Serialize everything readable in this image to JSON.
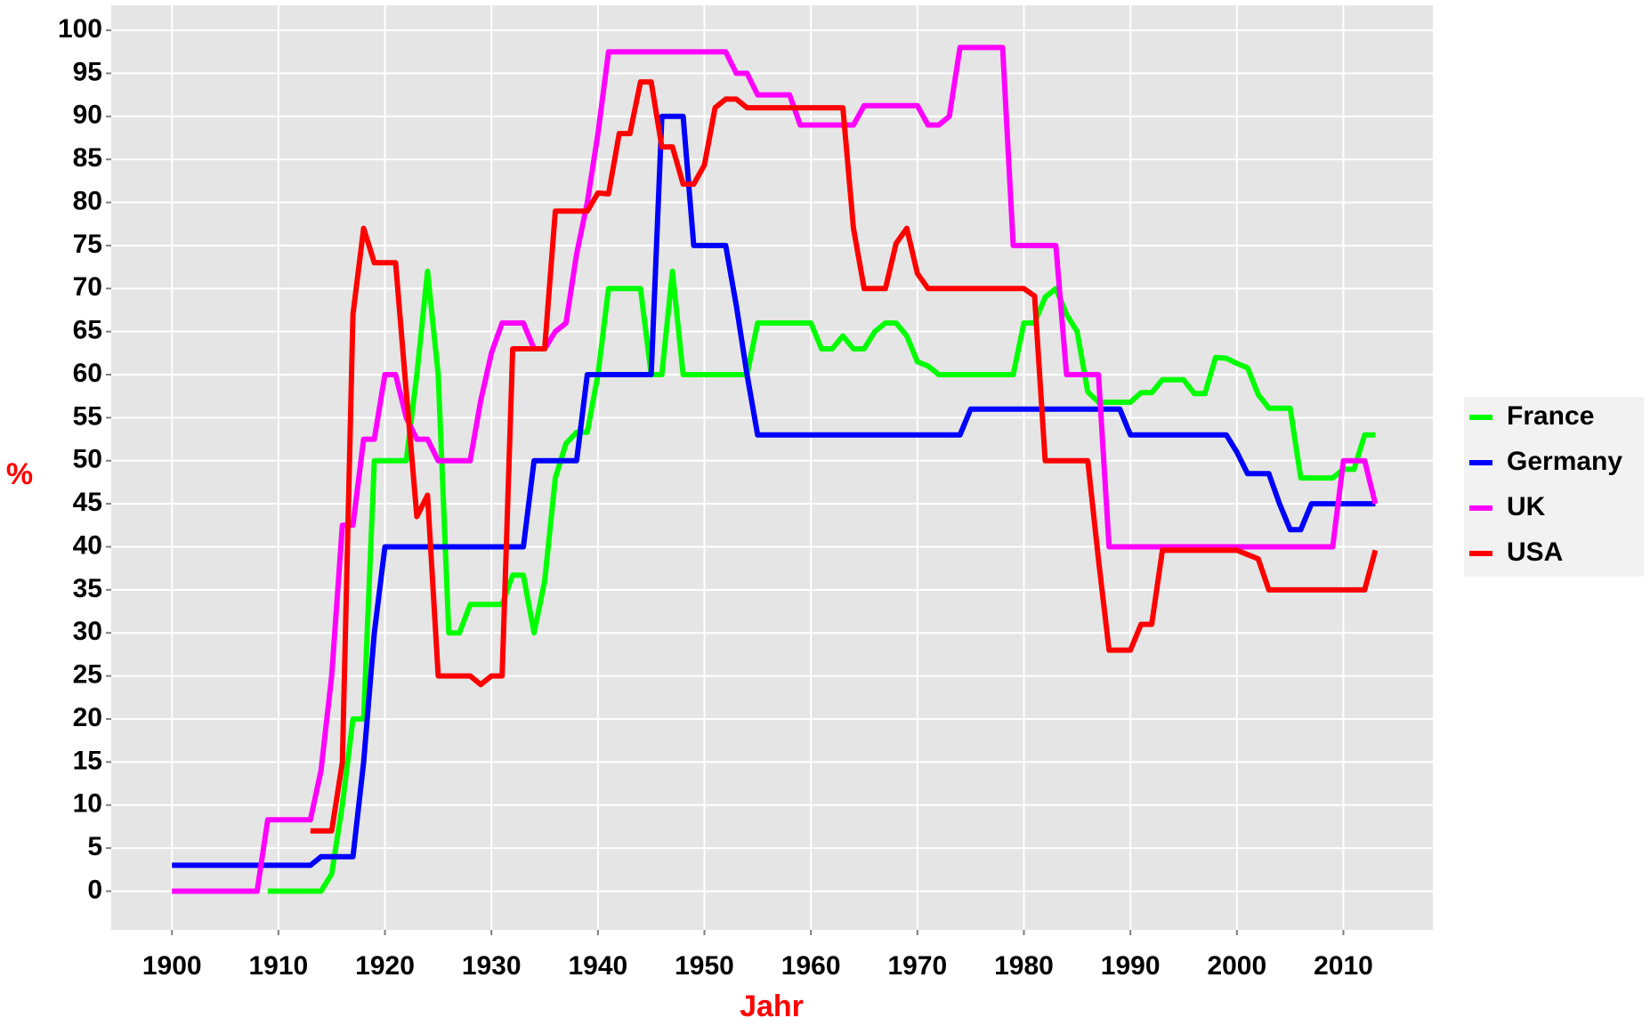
{
  "chart_data": {
    "type": "line",
    "x_label": "Jahr",
    "y_label": "%",
    "x": [
      1900,
      1901,
      1902,
      1903,
      1904,
      1905,
      1906,
      1907,
      1908,
      1909,
      1910,
      1911,
      1912,
      1913,
      1914,
      1915,
      1916,
      1917,
      1918,
      1919,
      1920,
      1921,
      1922,
      1923,
      1924,
      1925,
      1926,
      1927,
      1928,
      1929,
      1930,
      1931,
      1932,
      1933,
      1934,
      1935,
      1936,
      1937,
      1938,
      1939,
      1940,
      1941,
      1942,
      1943,
      1944,
      1945,
      1946,
      1947,
      1948,
      1949,
      1950,
      1951,
      1952,
      1953,
      1954,
      1955,
      1956,
      1957,
      1958,
      1959,
      1960,
      1961,
      1962,
      1963,
      1964,
      1965,
      1966,
      1967,
      1968,
      1969,
      1970,
      1971,
      1972,
      1973,
      1974,
      1975,
      1976,
      1977,
      1978,
      1979,
      1980,
      1981,
      1982,
      1983,
      1984,
      1985,
      1986,
      1987,
      1988,
      1989,
      1990,
      1991,
      1992,
      1993,
      1994,
      1995,
      1996,
      1997,
      1998,
      1999,
      2000,
      2001,
      2002,
      2003,
      2004,
      2005,
      2006,
      2007,
      2008,
      2009,
      2010,
      2011,
      2012,
      2013
    ],
    "series": [
      {
        "name": "France",
        "color": "#00ff00",
        "values": [
          null,
          null,
          null,
          null,
          null,
          null,
          null,
          null,
          null,
          0,
          0,
          0,
          0,
          0,
          0,
          2,
          10,
          20,
          20,
          50,
          50,
          50,
          50,
          60,
          72,
          60,
          30,
          30,
          33.3,
          33.3,
          33.3,
          33.3,
          36.7,
          36.7,
          30,
          36,
          48,
          52,
          53.3,
          53.3,
          60,
          70,
          70,
          70,
          70,
          60,
          60,
          72,
          60,
          60,
          60,
          60,
          60,
          60,
          60,
          66,
          66,
          66,
          66,
          66,
          66,
          63,
          63,
          64.5,
          63,
          63,
          65,
          66,
          66,
          64.5,
          61.5,
          61,
          60,
          60,
          60,
          60,
          60,
          60,
          60,
          60,
          66,
          66,
          69,
          70,
          67,
          65,
          58,
          56.8,
          56.8,
          56.8,
          56.8,
          57.9,
          57.9,
          59.4,
          59.4,
          59.4,
          57.8,
          57.8,
          62,
          61.9,
          61.3,
          60.8,
          57.7,
          56.1,
          56.1,
          56.1,
          48,
          48,
          48,
          48,
          49,
          49,
          53,
          53
        ]
      },
      {
        "name": "Germany",
        "color": "#0000ff",
        "values": [
          3,
          3,
          3,
          3,
          3,
          3,
          3,
          3,
          3,
          3,
          3,
          3,
          3,
          3,
          4,
          4,
          4,
          4,
          15,
          30,
          40,
          40,
          40,
          40,
          40,
          40,
          40,
          40,
          40,
          40,
          40,
          40,
          40,
          40,
          50,
          50,
          50,
          50,
          50,
          60,
          60,
          60,
          60,
          60,
          60,
          60,
          90,
          90,
          90,
          75,
          75,
          75,
          75,
          68,
          60,
          53,
          53,
          53,
          53,
          53,
          53,
          53,
          53,
          53,
          53,
          53,
          53,
          53,
          53,
          53,
          53,
          53,
          53,
          53,
          53,
          56,
          56,
          56,
          56,
          56,
          56,
          56,
          56,
          56,
          56,
          56,
          56,
          56,
          56,
          56,
          53,
          53,
          53,
          53,
          53,
          53,
          53,
          53,
          53,
          53,
          51,
          48.5,
          48.5,
          48.5,
          45,
          42,
          42,
          45,
          45,
          45,
          45,
          45,
          45,
          45
        ]
      },
      {
        "name": "UK",
        "color": "#ff00ff",
        "values": [
          0,
          0,
          0,
          0,
          0,
          0,
          0,
          0,
          0,
          8.3,
          8.3,
          8.3,
          8.3,
          8.3,
          14,
          25,
          42.5,
          42.5,
          52.5,
          52.5,
          60,
          60,
          55,
          52.5,
          52.5,
          50,
          50,
          50,
          50,
          57,
          62.5,
          66,
          66,
          66,
          63,
          63,
          65,
          66,
          74,
          80,
          88,
          97.5,
          97.5,
          97.5,
          97.5,
          97.5,
          97.5,
          97.5,
          97.5,
          97.5,
          97.5,
          97.5,
          97.5,
          95,
          95,
          92.5,
          92.5,
          92.5,
          92.5,
          89,
          89,
          89,
          89,
          89,
          89,
          91.25,
          91.25,
          91.25,
          91.25,
          91.25,
          91.25,
          89,
          89,
          90,
          98,
          98,
          98,
          98,
          98,
          75,
          75,
          75,
          75,
          75,
          60,
          60,
          60,
          60,
          40,
          40,
          40,
          40,
          40,
          40,
          40,
          40,
          40,
          40,
          40,
          40,
          40,
          40,
          40,
          40,
          40,
          40,
          40,
          40,
          40,
          40,
          50,
          50,
          50,
          45
        ]
      },
      {
        "name": "USA",
        "color": "#ff0000",
        "values": [
          null,
          null,
          null,
          null,
          null,
          null,
          null,
          null,
          null,
          null,
          null,
          null,
          null,
          7,
          7,
          7,
          15,
          67,
          77,
          73,
          73,
          73,
          58,
          43.5,
          46,
          25,
          25,
          25,
          25,
          24,
          25,
          25,
          63,
          63,
          63,
          63,
          79,
          79,
          79,
          79,
          81.1,
          81,
          88,
          88,
          94,
          94,
          86.45,
          86.45,
          82.13,
          82.13,
          84.36,
          91,
          92,
          92,
          91,
          91,
          91,
          91,
          91,
          91,
          91,
          91,
          91,
          91,
          77,
          70,
          70,
          70,
          75.25,
          77,
          71.75,
          70,
          70,
          70,
          70,
          70,
          70,
          70,
          70,
          70,
          70,
          69.13,
          50,
          50,
          50,
          50,
          50,
          38.5,
          28,
          28,
          28,
          31,
          31,
          39.6,
          39.6,
          39.6,
          39.6,
          39.6,
          39.6,
          39.6,
          39.6,
          39.1,
          38.6,
          35,
          35,
          35,
          35,
          35,
          35,
          35,
          35,
          35,
          35,
          39.6
        ]
      }
    ],
    "xlim": [
      1894.3,
      2018.4
    ],
    "xticks": [
      1900,
      1910,
      1920,
      1930,
      1940,
      1950,
      1960,
      1970,
      1980,
      1990,
      2000,
      2010
    ],
    "ylim": [
      -4.5,
      102.9
    ],
    "yticks": [
      0,
      5,
      10,
      15,
      20,
      25,
      30,
      35,
      40,
      45,
      50,
      55,
      60,
      65,
      70,
      75,
      80,
      85,
      90,
      95,
      100
    ],
    "grid": true,
    "legend": "right"
  }
}
